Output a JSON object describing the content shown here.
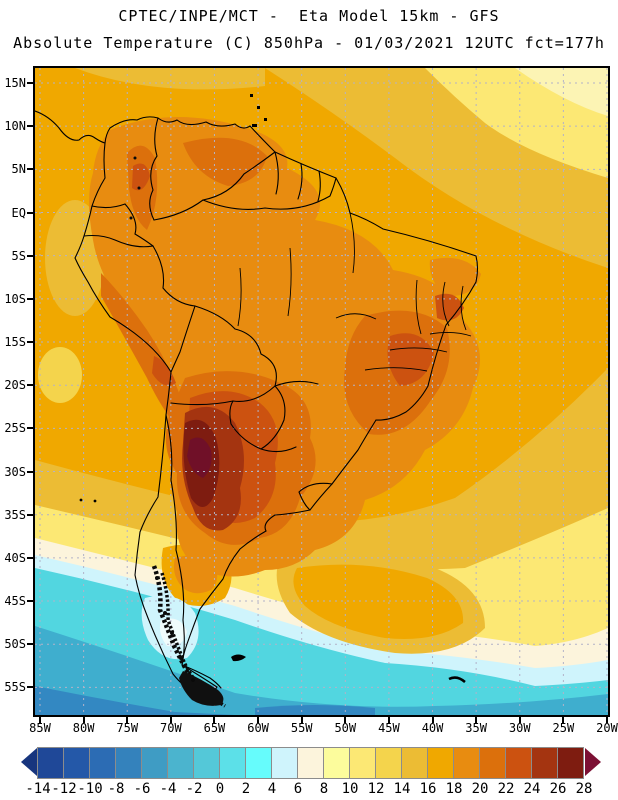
{
  "header": {
    "line1": "CPTEC/INPE/MCT -  Eta Model 15km - GFS",
    "line2": "Absolute Temperature (C) 850hPa - 01/03/2021 12UTC fct=177h"
  },
  "map": {
    "lat_labels": [
      "15N",
      "10N",
      "5N",
      "EQ",
      "5S",
      "10S",
      "15S",
      "20S",
      "25S",
      "30S",
      "35S",
      "40S",
      "45S",
      "50S",
      "55S"
    ],
    "lon_labels": [
      "85W",
      "80W",
      "75W",
      "70W",
      "65W",
      "60W",
      "55W",
      "50W",
      "45W",
      "40W",
      "35W",
      "30W",
      "25W",
      "20W"
    ],
    "grid_color": "#B2B2C8",
    "border_color": "#000000"
  },
  "palette": {
    "gold_16_18": "#F0A800",
    "gold_light_14_16": "#ECBC34",
    "yellow_12_14": "#F4D44C",
    "yellow_10_12": "#FCE874",
    "yellow_8_10": "#FCFC9C",
    "cream_6_8": "#FCF4DC",
    "pale_corner": "#FCF4B4",
    "pale_cyan_4_6": "#CFF4FC",
    "cyan_0_2": "#52D6E0",
    "teal_m4_m2": "#3FAECE",
    "blue_m8_m6": "#3388C2",
    "white_patch": "#F0FCFC",
    "orange_18_20": "#E88C10",
    "orange_20_22": "#DC700C",
    "red_22_24": "#CC5210",
    "red_24_26": "#A43410",
    "dark_red_26_28": "#7E1C10",
    "maroon_28_plus": "#701028"
  },
  "colorbar": {
    "labels": [
      "-14",
      "-12",
      "-10",
      "-8",
      "-6",
      "-4",
      "-2",
      "0",
      "2",
      "4",
      "6",
      "8",
      "10",
      "12",
      "14",
      "16",
      "18",
      "20",
      "22",
      "24",
      "26",
      "28"
    ],
    "cells": [
      "#1F4898",
      "#2458A8",
      "#2C6CB4",
      "#3482BC",
      "#3F9CC4",
      "#4BB4CE",
      "#54C8D8",
      "#5CE0E8",
      "#66FCFC",
      "#CFF4FC",
      "#FCF4DC",
      "#FCFC9C",
      "#FCE874",
      "#F4D44C",
      "#ECBC34",
      "#F0A800",
      "#E88C10",
      "#DC700C",
      "#CC5210",
      "#A43410",
      "#7E1C10"
    ],
    "left_arrow_color": "#17357E",
    "right_arrow_color": "#7C1034",
    "cell_border_color": "#8C8C8C"
  }
}
